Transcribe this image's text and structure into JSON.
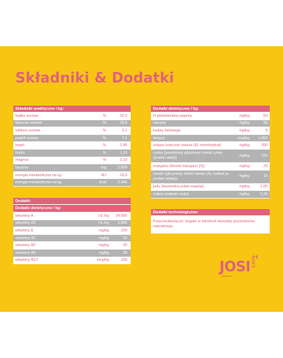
{
  "title": "Składniki & Dodatki",
  "colors": {
    "background": "#f8c513",
    "accent": "#e0637a",
    "row_alt": "#b3b3b3"
  },
  "analytic": {
    "header": "Składniki analityczne / kg:",
    "rows": [
      {
        "name": "białko surowe",
        "unit": "%",
        "value": "32,0"
      },
      {
        "name": "tłuszcze surowe",
        "unit": "%",
        "value": "18,0"
      },
      {
        "name": "włókno surowe",
        "unit": "%",
        "value": "2,1"
      },
      {
        "name": "popiół surowy",
        "unit": "%",
        "value": "7,1"
      },
      {
        "name": "wapń",
        "unit": "%",
        "value": "1,45"
      },
      {
        "name": "fosfor",
        "unit": "%",
        "value": "1,10"
      },
      {
        "name": "magnez",
        "unit": "%",
        "value": "0,10"
      },
      {
        "name": "tauryna",
        "unit": "mg",
        "value": "1.600"
      },
      {
        "name": "energia metaboliczna na kg",
        "unit": "MJ",
        "value": "16,6"
      },
      {
        "name": "energia metaboliczna na kg",
        "unit": "kcal",
        "value": "3.966"
      }
    ]
  },
  "additives": {
    "header": "Dodatki:",
    "subheader": "Dodatki dietetyczne / kg:",
    "rows": [
      {
        "name": "witaminy A",
        "unit": "I.E./kg",
        "value": "24.000"
      },
      {
        "name": "witaminy D3",
        "unit": "I.E./kg",
        "value": "1.800"
      },
      {
        "name": "witaminy E",
        "unit": "mg/kg",
        "value": "220"
      },
      {
        "name": "witaminy B1",
        "unit": "mg/kg",
        "value": "15"
      },
      {
        "name": "witaminy B2",
        "unit": "mg/kg",
        "value": "20"
      },
      {
        "name": "witaminy B6",
        "unit": "mg/kg",
        "value": "20"
      },
      {
        "name": "witaminy B12",
        "unit": "mcg/kg",
        "value": "100"
      }
    ]
  },
  "dietetic": {
    "header": "Dodatki dietetyczne / kg:",
    "rows": [
      {
        "name": "D-pantotenianu wapnia",
        "unit": "mg/kg",
        "value": "50"
      },
      {
        "name": "niacyny",
        "unit": "mg/kg",
        "value": "90"
      },
      {
        "name": "kwasu foliowego",
        "unit": "mg/kg",
        "value": "5"
      },
      {
        "name": "biotyny",
        "unit": "mcg/kg",
        "value": "1.000"
      },
      {
        "name": "żelaza (siarczan żelaza (II), monohydrat)",
        "unit": "mg/kg",
        "value": "200"
      },
      {
        "name": "cynku (uwodniony glicynowy chelat cynku (postać stała))",
        "unit": "mg/kg",
        "value": "150"
      },
      {
        "name": "manganu (tlenek manganu (II))",
        "unit": "mg/kg",
        "value": "20"
      },
      {
        "name": "miedzi (glicynowy chelat miedzi (II), hydrat (w postaci stałej))",
        "unit": "mg/kg",
        "value": "16"
      },
      {
        "name": "jodu (bezwodny jodan wapnia)",
        "unit": "mg/kg",
        "value": "2,00"
      },
      {
        "name": "selenu (selenin sodu)",
        "unit": "mg/kg",
        "value": "0,25"
      }
    ]
  },
  "technological": {
    "header": "Dodatki technologiczne:",
    "note": "Przeciwutleniacze: bogate w tokoferol ekstrakty pochodzenia naturalnego."
  },
  "logo": {
    "brand": "JOSI",
    "sub": "CAT",
    "byline": "by josera"
  }
}
